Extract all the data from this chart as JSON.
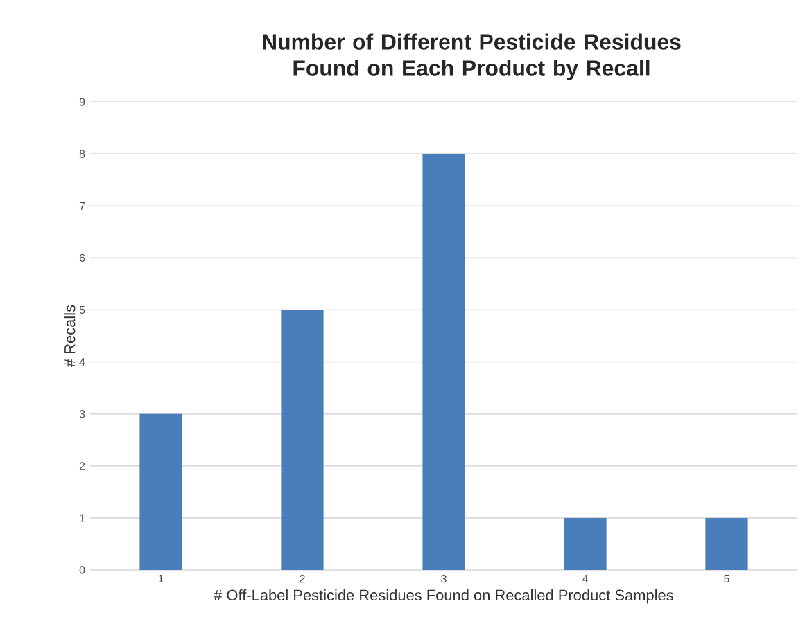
{
  "chart_data": {
    "type": "bar",
    "title": "Number of Different Pesticide Residues Found on Each Product by Recall",
    "xlabel": "# Off-Label Pesticide Residues Found on Recalled Product Samples",
    "ylabel": "# Recalls",
    "categories": [
      "1",
      "2",
      "3",
      "4",
      "5"
    ],
    "values": [
      3,
      5,
      8,
      1,
      1
    ],
    "color": "#4a7ebb",
    "ylim": [
      0,
      9
    ],
    "yticks": [
      0,
      1,
      2,
      3,
      4,
      5,
      6,
      7,
      8,
      9
    ],
    "grid": "y"
  }
}
